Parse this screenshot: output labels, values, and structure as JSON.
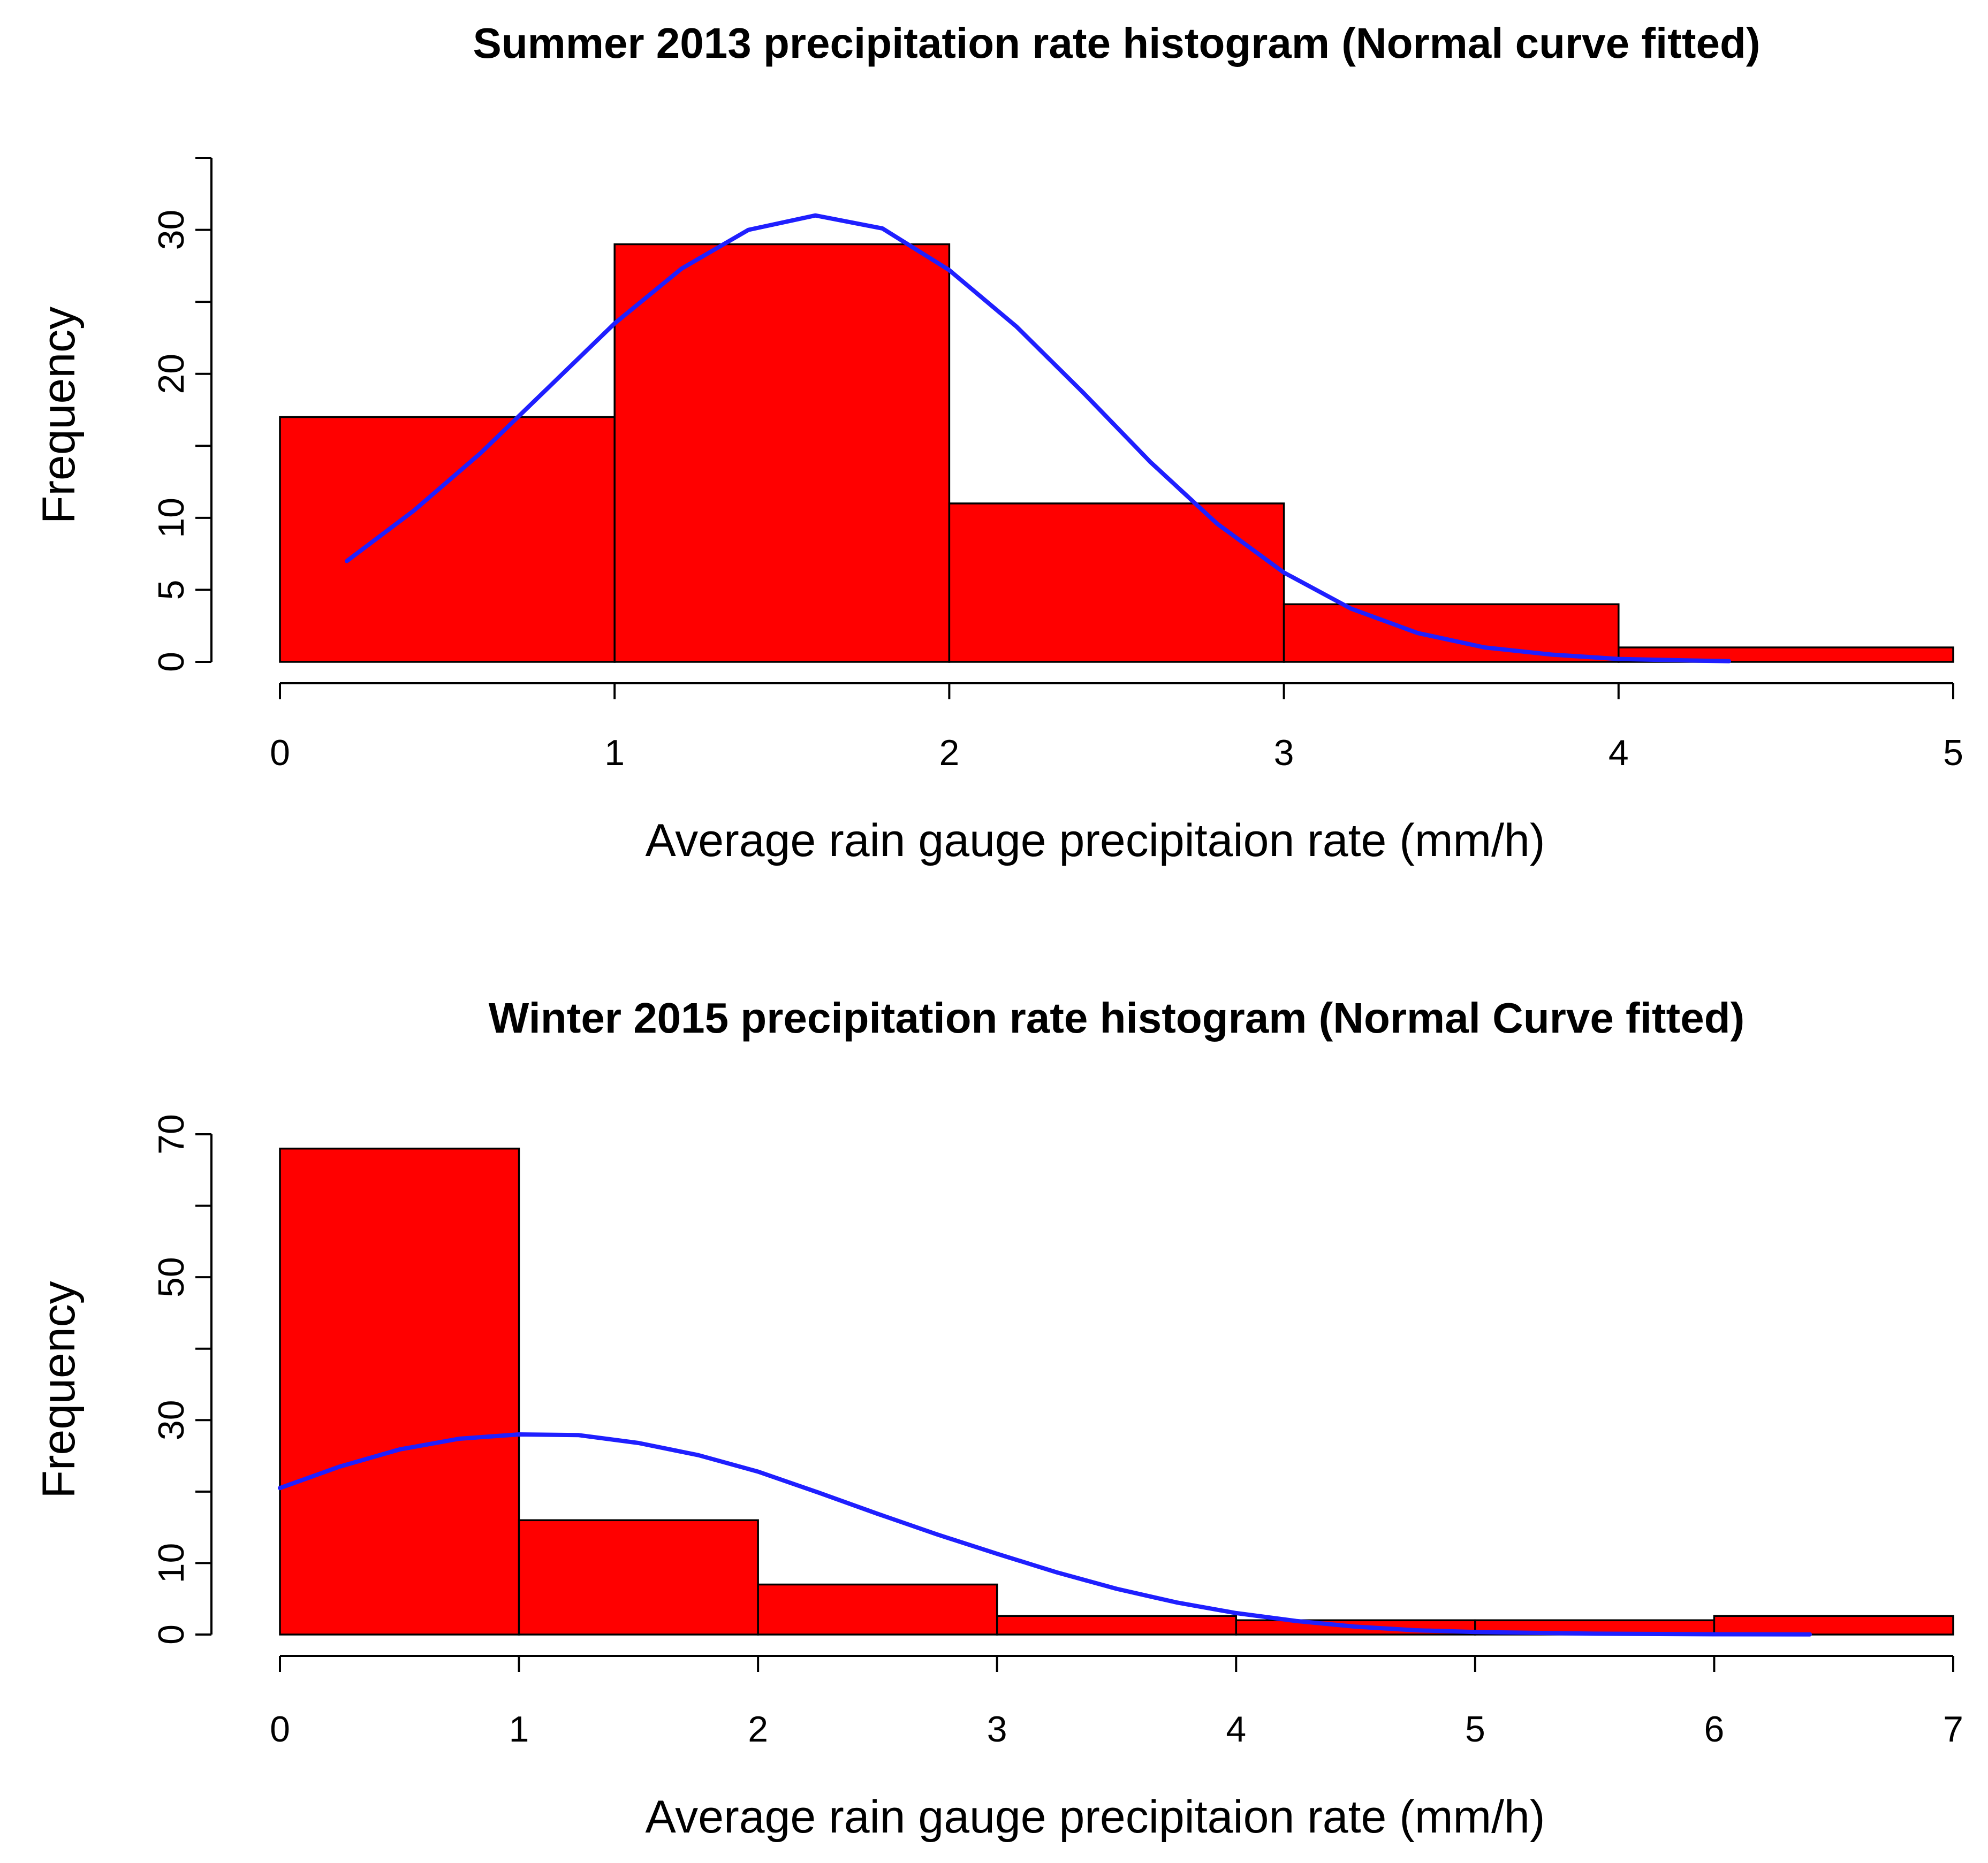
{
  "colors": {
    "bar_fill": "#ff0000",
    "bar_stroke": "#000000",
    "curve": "#1f1fff"
  },
  "chart_data": [
    {
      "type": "histogram",
      "title": "Summer 2013 precipitation rate histogram (Normal curve fitted)",
      "xlabel": "Average rain gauge precipitaion rate (mm/h)",
      "ylabel": "Frequency",
      "xlim": [
        0,
        5
      ],
      "ylim": [
        0,
        35
      ],
      "x_ticks": [
        "0",
        "1",
        "2",
        "3",
        "4",
        "5"
      ],
      "y_ticks": [
        "0",
        "5",
        "10",
        "20",
        "30"
      ],
      "y_minor_ticks": [
        15,
        25,
        35
      ],
      "bins": [
        [
          0,
          1
        ],
        [
          1,
          2
        ],
        [
          2,
          3
        ],
        [
          3,
          4
        ],
        [
          4,
          5
        ]
      ],
      "counts": [
        17,
        29,
        11,
        4,
        1
      ],
      "normal_curve": {
        "x": [
          0.2,
          0.4,
          0.6,
          0.8,
          1.0,
          1.2,
          1.4,
          1.6,
          1.8,
          2.0,
          2.2,
          2.4,
          2.6,
          2.8,
          3.0,
          3.2,
          3.4,
          3.6,
          3.8,
          4.0,
          4.2,
          4.33
        ],
        "y": [
          7,
          10.5,
          14.5,
          19,
          23.5,
          27.3,
          30,
          31,
          30.1,
          27.2,
          23.3,
          18.7,
          13.9,
          9.6,
          6.2,
          3.7,
          2.0,
          1.0,
          0.5,
          0.2,
          0.1,
          0.05
        ]
      }
    },
    {
      "type": "histogram",
      "title": "Winter 2015 precipitation rate histogram (Normal Curve fitted)",
      "xlabel": "Average rain gauge precipitaion rate (mm/h)",
      "ylabel": "Frequency",
      "xlim": [
        0,
        7
      ],
      "ylim": [
        0,
        70
      ],
      "x_ticks": [
        "0",
        "1",
        "2",
        "3",
        "4",
        "5",
        "6",
        "7"
      ],
      "y_ticks": [
        "0",
        "10",
        "30",
        "50",
        "70"
      ],
      "y_minor_ticks": [
        20,
        40,
        60
      ],
      "bins": [
        [
          0,
          1
        ],
        [
          1,
          2
        ],
        [
          2,
          3
        ],
        [
          3,
          4
        ],
        [
          4,
          5
        ],
        [
          5,
          6
        ],
        [
          6,
          7
        ]
      ],
      "counts": [
        68,
        16,
        7,
        2.6,
        2,
        2,
        2.6
      ],
      "normal_curve": {
        "x": [
          0,
          0.25,
          0.5,
          0.75,
          1.0,
          1.25,
          1.5,
          1.75,
          2.0,
          2.25,
          2.5,
          2.75,
          3.0,
          3.25,
          3.5,
          3.75,
          4.0,
          4.25,
          4.5,
          4.75,
          5.0,
          5.5,
          6.0,
          6.4
        ],
        "y": [
          20.5,
          23.5,
          25.9,
          27.4,
          28.0,
          27.9,
          26.8,
          25.1,
          22.8,
          19.9,
          16.9,
          14.0,
          11.3,
          8.7,
          6.4,
          4.5,
          3.0,
          1.9,
          1.1,
          0.6,
          0.35,
          0.12,
          0.04,
          0.02
        ]
      }
    }
  ]
}
